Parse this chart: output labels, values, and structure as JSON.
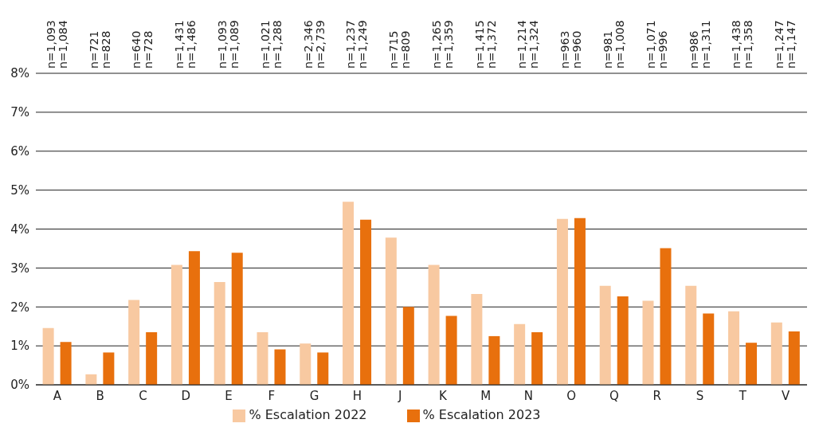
{
  "chart_data": {
    "type": "bar",
    "categories": [
      "A",
      "B",
      "C",
      "D",
      "E",
      "F",
      "G",
      "H",
      "J",
      "K",
      "M",
      "N",
      "O",
      "Q",
      "R",
      "S",
      "T",
      "V"
    ],
    "series": [
      {
        "name": "% Escalation 2022",
        "color": "#f8c9a1",
        "values": [
          1.46,
          0.27,
          2.18,
          3.08,
          2.64,
          1.35,
          1.06,
          4.7,
          3.78,
          3.08,
          2.33,
          1.56,
          4.26,
          2.54,
          2.16,
          2.54,
          1.89,
          1.6
        ]
      },
      {
        "name": "% Escalation 2023",
        "color": "#e8700d",
        "values": [
          1.1,
          0.83,
          1.35,
          3.43,
          3.39,
          0.91,
          0.83,
          4.24,
          2.0,
          1.77,
          1.25,
          1.35,
          4.28,
          2.27,
          3.51,
          1.83,
          1.08,
          1.37
        ]
      }
    ],
    "ylim": [
      0,
      8
    ],
    "yticks": [
      {
        "value": 0,
        "label": "0%"
      },
      {
        "value": 1,
        "label": "1%"
      },
      {
        "value": 2,
        "label": "2%"
      },
      {
        "value": 3,
        "label": "3%"
      },
      {
        "value": 4,
        "label": "4%"
      },
      {
        "value": 5,
        "label": "5%"
      },
      {
        "value": 6,
        "label": "6%"
      },
      {
        "value": 7,
        "label": "7%"
      },
      {
        "value": 8,
        "label": "8%"
      }
    ],
    "grid": "y",
    "legend": "bottom",
    "annotations": [
      "n=1,093",
      "n=1,084",
      "n=721",
      "n=828",
      "n=640",
      "n=728",
      "n=1,431",
      "n=1,486",
      "n=1,093",
      "n=1,089",
      "n=1,021",
      "n=1,288",
      "n=2,346",
      "n=2,739",
      "n=1,237",
      "n=1,249",
      "n=715",
      "n=809",
      "n=1,265",
      "n=1,359",
      "n=1,415",
      "n=1,372",
      "n=1,214",
      "n=1,324",
      "n=963",
      "n=960",
      "n=981",
      "n=1,008",
      "n=1,071",
      "n=996",
      "n=986",
      "n=1,311",
      "n=1,438",
      "n=1,358",
      "n=1,247",
      "n=1,147"
    ]
  }
}
